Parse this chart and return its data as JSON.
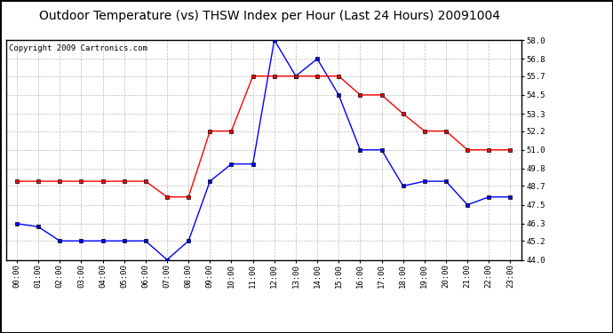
{
  "title": "Outdoor Temperature (vs) THSW Index per Hour (Last 24 Hours) 20091004",
  "copyright": "Copyright 2009 Cartronics.com",
  "hours": [
    "00:00",
    "01:00",
    "02:00",
    "03:00",
    "04:00",
    "05:00",
    "06:00",
    "07:00",
    "08:00",
    "09:00",
    "10:00",
    "11:00",
    "12:00",
    "13:00",
    "14:00",
    "15:00",
    "16:00",
    "17:00",
    "18:00",
    "19:00",
    "20:00",
    "21:00",
    "22:00",
    "23:00"
  ],
  "temp_blue": [
    46.3,
    46.1,
    45.2,
    45.2,
    45.2,
    45.2,
    45.2,
    44.0,
    45.2,
    49.0,
    50.1,
    50.1,
    58.0,
    55.7,
    56.8,
    54.5,
    51.0,
    51.0,
    48.7,
    49.0,
    49.0,
    47.5,
    48.0,
    48.0
  ],
  "thsw_red": [
    49.0,
    49.0,
    49.0,
    49.0,
    49.0,
    49.0,
    49.0,
    48.0,
    48.0,
    52.2,
    52.2,
    55.7,
    55.7,
    55.7,
    55.7,
    55.7,
    54.5,
    54.5,
    53.3,
    52.2,
    52.2,
    51.0,
    51.0,
    51.0
  ],
  "ylim_min": 44.0,
  "ylim_max": 58.0,
  "yticks": [
    44.0,
    45.2,
    46.3,
    47.5,
    48.7,
    49.8,
    51.0,
    52.2,
    53.3,
    54.5,
    55.7,
    56.8,
    58.0
  ],
  "line_color_blue": "#0000ff",
  "line_color_red": "#ff0000",
  "marker_color": "#000000",
  "grid_color": "#bbbbbb",
  "bg_color": "#ffffff",
  "outer_bg": "#ffffff",
  "title_fontsize": 10,
  "copyright_fontsize": 6.5,
  "tick_fontsize": 6.5,
  "ytick_fontsize": 6.5
}
